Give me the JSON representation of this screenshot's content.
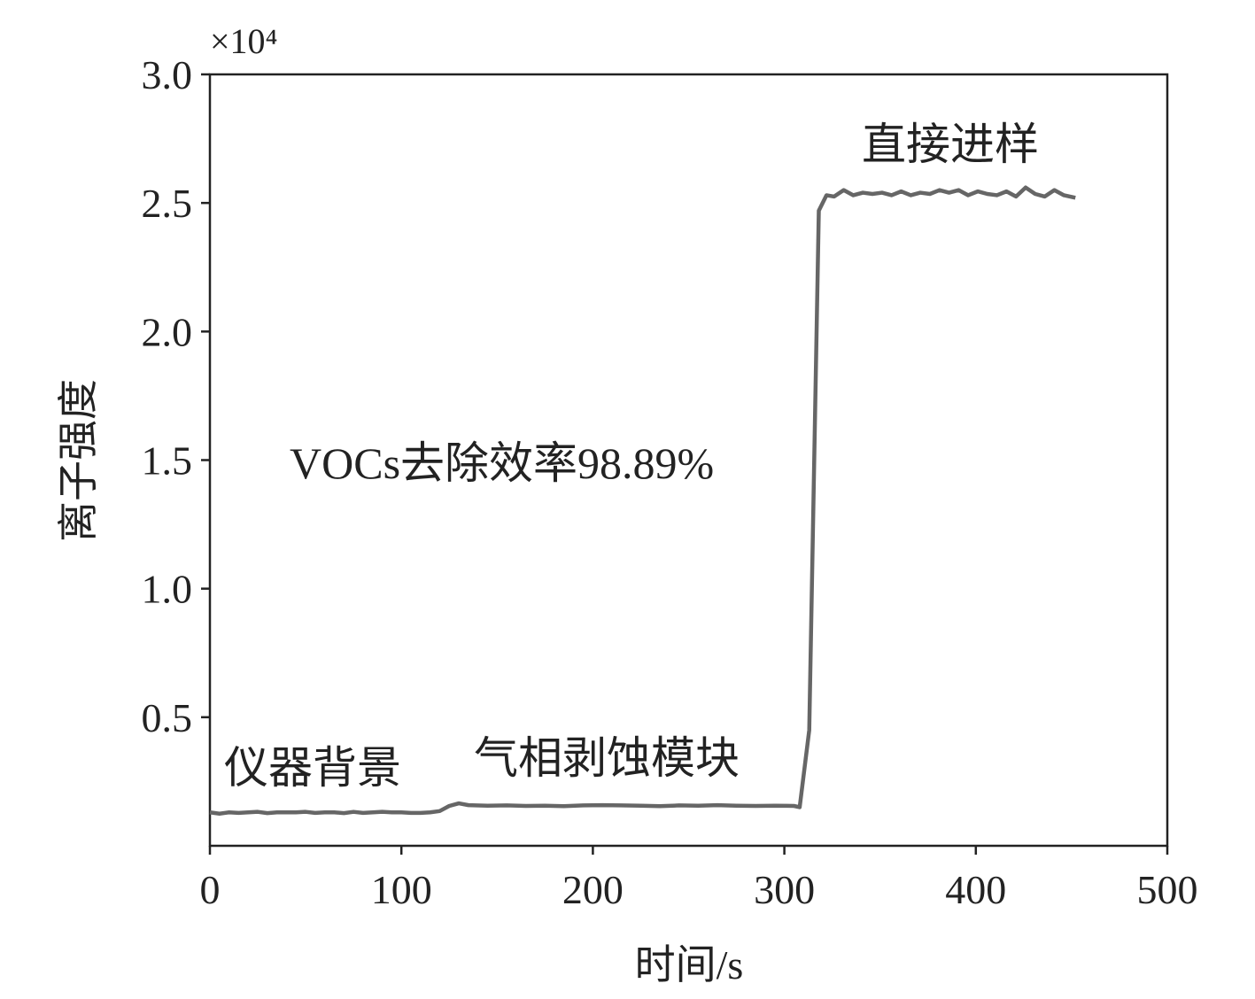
{
  "chart_data": {
    "type": "line",
    "axis_multiplier": "×10⁴",
    "xlabel": "时间/s",
    "ylabel": "离子强度",
    "annotations": [
      "仪器背景",
      "气相剥蚀模块",
      "直接进样",
      "VOCs去除效率98.89%"
    ],
    "xlim": [
      0,
      500
    ],
    "xticks": [
      0,
      100,
      200,
      300,
      400,
      500
    ],
    "ylim": [
      0,
      3.0
    ],
    "yticks": [
      0.5,
      {
        "value": 1,
        "label": "1.0"
      },
      1.5,
      {
        "value": 2,
        "label": "2.0"
      },
      2.5,
      {
        "value": 3,
        "label": "3.0"
      }
    ],
    "grid": false,
    "x": [
      0,
      5,
      10,
      15,
      20,
      25,
      30,
      35,
      40,
      45,
      50,
      55,
      60,
      65,
      70,
      75,
      80,
      85,
      90,
      95,
      100,
      105,
      110,
      115,
      120,
      125,
      130,
      135,
      145,
      155,
      165,
      175,
      185,
      195,
      205,
      215,
      225,
      235,
      245,
      255,
      265,
      275,
      285,
      295,
      305,
      308,
      313,
      318,
      322,
      326,
      331,
      336,
      341,
      346,
      351,
      356,
      361,
      366,
      371,
      376,
      381,
      386,
      391,
      396,
      401,
      406,
      411,
      416,
      421,
      426,
      431,
      436,
      441,
      446,
      452
    ],
    "series": [
      {
        "color": "#666666",
        "values": [
          0.13,
          0.125,
          0.13,
          0.128,
          0.13,
          0.132,
          0.127,
          0.13,
          0.13,
          0.13,
          0.132,
          0.128,
          0.13,
          0.13,
          0.127,
          0.132,
          0.128,
          0.13,
          0.132,
          0.13,
          0.13,
          0.128,
          0.128,
          0.13,
          0.135,
          0.155,
          0.165,
          0.158,
          0.156,
          0.157,
          0.155,
          0.156,
          0.154,
          0.157,
          0.158,
          0.157,
          0.156,
          0.154,
          0.157,
          0.156,
          0.158,
          0.156,
          0.155,
          0.156,
          0.155,
          0.15,
          0.45,
          2.47,
          2.53,
          2.525,
          2.55,
          2.53,
          2.54,
          2.535,
          2.54,
          2.53,
          2.545,
          2.53,
          2.54,
          2.535,
          2.55,
          2.54,
          2.55,
          2.53,
          2.545,
          2.535,
          2.53,
          2.545,
          2.525,
          2.56,
          2.535,
          2.525,
          2.55,
          2.53,
          2.52
        ]
      }
    ]
  }
}
